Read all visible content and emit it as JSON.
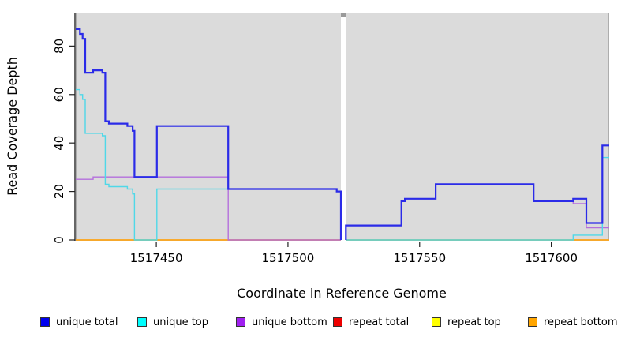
{
  "chart_data": {
    "type": "line",
    "subtype": "step",
    "title": "",
    "xlabel": "Coordinate in Reference Genome",
    "ylabel": "Read Coverage Depth",
    "x_domain": [
      1517419.4,
      1517622
    ],
    "y_domain": [
      0,
      93.8
    ],
    "x_ticks": [
      1517450,
      1517500,
      1517550,
      1517600
    ],
    "y_ticks": [
      0,
      20,
      40,
      60,
      80
    ],
    "grid": false,
    "plot_bg": "#DBDBDB",
    "gap_x": [
      1517520.1,
      1517522
    ],
    "legend_position": "bottom",
    "series": [
      {
        "name": "repeat total",
        "color": "#DD3333",
        "legend_color": "#EE0000",
        "lwd": 1.4,
        "segments": [
          {
            "rise_start": false,
            "drop_end": false,
            "end": 1517520.1,
            "points": [
              [
                1517419.4,
                0
              ]
            ]
          },
          {
            "rise_start": false,
            "drop_end": false,
            "end": 1517622,
            "points": [
              [
                1517522,
                0
              ]
            ]
          }
        ]
      },
      {
        "name": "repeat top",
        "color": "#EEEE33",
        "legend_color": "#FFFF00",
        "lwd": 1.4,
        "segments": [
          {
            "rise_start": false,
            "drop_end": false,
            "end": 1517520.1,
            "points": [
              [
                1517419.4,
                0
              ]
            ]
          },
          {
            "rise_start": false,
            "drop_end": false,
            "end": 1517622,
            "points": [
              [
                1517522,
                0
              ]
            ]
          }
        ]
      },
      {
        "name": "repeat bottom",
        "color": "#FFA520",
        "legend_color": "#FFA500",
        "lwd": 1.4,
        "segments": [
          {
            "rise_start": false,
            "drop_end": false,
            "end": 1517520.1,
            "points": [
              [
                1517419.4,
                0
              ]
            ]
          },
          {
            "rise_start": false,
            "drop_end": false,
            "end": 1517622,
            "points": [
              [
                1517522,
                0
              ]
            ]
          }
        ]
      },
      {
        "name": "unique bottom",
        "color": "#B46FDC",
        "legend_color": "#A020F0",
        "lwd": 1.4,
        "segments": [
          {
            "rise_start": false,
            "drop_end": false,
            "end": 1517520.1,
            "points": [
              [
                1517419.4,
                25
              ],
              [
                1517426,
                26
              ],
              [
                1517477.3,
                0
              ]
            ]
          },
          {
            "rise_start": true,
            "drop_end": false,
            "end": 1517622,
            "points": [
              [
                1517522,
                6
              ],
              [
                1517543.1,
                16
              ],
              [
                1517544.4,
                17
              ],
              [
                1517556.1,
                23
              ],
              [
                1517593.3,
                16
              ],
              [
                1517608.3,
                15
              ],
              [
                1517613.3,
                5
              ]
            ]
          }
        ]
      },
      {
        "name": "unique top",
        "color": "#4FD8E8",
        "legend_color": "#00FFFF",
        "lwd": 1.4,
        "segments": [
          {
            "rise_start": false,
            "drop_end": true,
            "end": 1517520.1,
            "points": [
              [
                1517419.4,
                62
              ],
              [
                1517421,
                60
              ],
              [
                1517422,
                58
              ],
              [
                1517423,
                44
              ],
              [
                1517429.5,
                43
              ],
              [
                1517430.6,
                23
              ],
              [
                1517432,
                22
              ],
              [
                1517439,
                21
              ],
              [
                1517441,
                19
              ],
              [
                1517441.7,
                0
              ],
              [
                1517450.2,
                21
              ],
              [
                1517518.5,
                20
              ]
            ]
          },
          {
            "rise_start": false,
            "drop_end": false,
            "end": 1517622,
            "points": [
              [
                1517522,
                0
              ],
              [
                1517608.3,
                2
              ],
              [
                1517619.4,
                34
              ]
            ]
          }
        ]
      },
      {
        "name": "unique total",
        "color": "#2B2BE8",
        "legend_color": "#0000EE",
        "lwd": 2.2,
        "segments": [
          {
            "rise_start": false,
            "drop_end": true,
            "end": 1517520.1,
            "points": [
              [
                1517419.4,
                87
              ],
              [
                1517421,
                85
              ],
              [
                1517422,
                83
              ],
              [
                1517423,
                69
              ],
              [
                1517426,
                70
              ],
              [
                1517429.5,
                69
              ],
              [
                1517430.6,
                49
              ],
              [
                1517432,
                48
              ],
              [
                1517439,
                47
              ],
              [
                1517441,
                45
              ],
              [
                1517441.7,
                26
              ],
              [
                1517450.2,
                47
              ],
              [
                1517477.3,
                21
              ],
              [
                1517518.5,
                20
              ]
            ]
          },
          {
            "rise_start": true,
            "drop_end": false,
            "end": 1517622,
            "points": [
              [
                1517522,
                6
              ],
              [
                1517543.1,
                16
              ],
              [
                1517544.4,
                17
              ],
              [
                1517556.1,
                23
              ],
              [
                1517593.3,
                16
              ],
              [
                1517608.3,
                17
              ],
              [
                1517613.3,
                7
              ],
              [
                1517619.4,
                39
              ]
            ]
          }
        ]
      }
    ],
    "legend_order": [
      "unique total",
      "unique top",
      "unique bottom",
      "repeat total",
      "repeat top",
      "repeat bottom"
    ]
  }
}
